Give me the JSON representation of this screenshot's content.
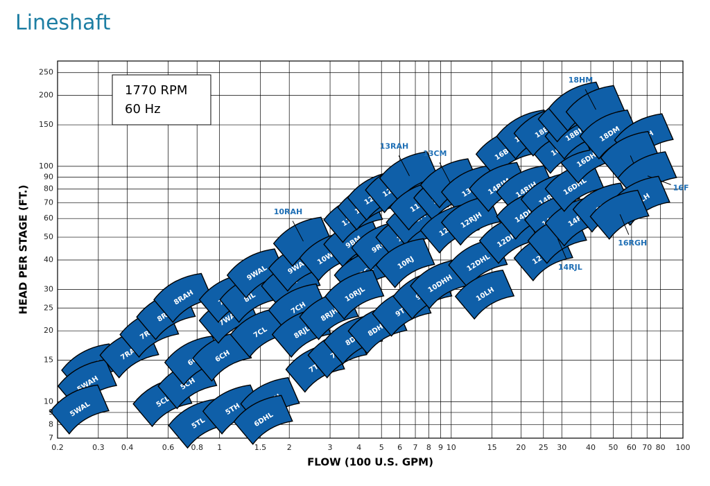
{
  "chart_data": {
    "type": "coverage",
    "title": "Lineshaft",
    "annotation": [
      "1770 RPM",
      "60 Hz"
    ],
    "x_label": "FLOW (100 U.S. GPM)",
    "y_label": "HEAD PER STAGE (FT.)",
    "log_x": true,
    "log_y": true,
    "grid": true,
    "color": "#0f5fa8",
    "callout_color": "#1f6fb5",
    "xlim": [
      0.2,
      100
    ],
    "ylim": [
      7,
      280
    ],
    "xticks": [
      0.2,
      0.3,
      0.4,
      0.6,
      0.8,
      1,
      1.5,
      2,
      3,
      4,
      5,
      6,
      7,
      8,
      9,
      10,
      15,
      20,
      25,
      30,
      40,
      50,
      60,
      70,
      80,
      100
    ],
    "yticks": [
      7,
      8,
      9,
      10,
      15,
      20,
      25,
      30,
      40,
      50,
      60,
      70,
      80,
      90,
      100,
      150,
      200,
      250
    ],
    "regions": [
      {
        "name": "6RAH",
        "x": 0.28,
        "y": 13.9
      },
      {
        "name": "5WAH",
        "x": 0.27,
        "y": 11.9
      },
      {
        "name": "5WAL",
        "x": 0.25,
        "y": 9.3
      },
      {
        "name": "7RAL",
        "x": 0.41,
        "y": 16.1
      },
      {
        "name": "7RAH",
        "x": 0.5,
        "y": 19.7
      },
      {
        "name": "8RAL",
        "x": 0.59,
        "y": 23.4
      },
      {
        "name": "8RAH",
        "x": 0.7,
        "y": 27.7
      },
      {
        "name": "5CL",
        "x": 0.57,
        "y": 10
      },
      {
        "name": "5CH",
        "x": 0.73,
        "y": 11.9
      },
      {
        "name": "6CL",
        "x": 0.78,
        "y": 15
      },
      {
        "name": "5TL",
        "x": 0.81,
        "y": 8.1
      },
      {
        "name": "6CH",
        "x": 1.03,
        "y": 15.6
      },
      {
        "name": "5TH",
        "x": 1.14,
        "y": 9.3
      },
      {
        "name": "6DHH",
        "x": 1.66,
        "y": 10
      },
      {
        "name": "6DHL",
        "x": 1.55,
        "y": 8.4
      },
      {
        "name": "7WAL",
        "x": 1.1,
        "y": 22.6
      },
      {
        "name": "7WAH",
        "x": 1.1,
        "y": 27.7
      },
      {
        "name": "8IL",
        "x": 1.35,
        "y": 27.7
      },
      {
        "name": "9WAL",
        "x": 1.45,
        "y": 35.2
      },
      {
        "name": "7CL",
        "x": 1.5,
        "y": 19.7
      },
      {
        "name": "8IH",
        "x": 2.04,
        "y": 31.7
      },
      {
        "name": "9WAH",
        "x": 2.19,
        "y": 37.6
      },
      {
        "name": "7CH",
        "x": 2.19,
        "y": 25
      },
      {
        "name": "8RJL",
        "x": 2.27,
        "y": 19.7
      },
      {
        "name": "8RJH",
        "x": 2.98,
        "y": 23.4
      },
      {
        "name": "7TL",
        "x": 2.6,
        "y": 14
      },
      {
        "name": "7TH",
        "x": 3.24,
        "y": 16.1
      },
      {
        "name": "8DIL",
        "x": 3.79,
        "y": 18.4
      },
      {
        "name": "10RAH",
        "x": 2.3,
        "y": 48,
        "callout": "above"
      },
      {
        "name": "10WAL",
        "x": 2.98,
        "y": 41.6
      },
      {
        "name": "9BM",
        "x": 3.79,
        "y": 47.6
      },
      {
        "name": "9RCL",
        "x": 4.21,
        "y": 35.2
      },
      {
        "name": "10RJL",
        "x": 3.84,
        "y": 28.6
      },
      {
        "name": "9RCH",
        "x": 5,
        "y": 46
      },
      {
        "name": "11RAH",
        "x": 3.79,
        "y": 60.5
      },
      {
        "name": "11WAH",
        "x": 4.35,
        "y": 68.4
      },
      {
        "name": "12WAM",
        "x": 4.8,
        "y": 75.2
      },
      {
        "name": "12WAH",
        "x": 5.73,
        "y": 81
      },
      {
        "name": "13RAH",
        "x": 6.6,
        "y": 91,
        "callout": "above"
      },
      {
        "name": "11CL",
        "x": 6.36,
        "y": 51
      },
      {
        "name": "11CM",
        "x": 7.05,
        "y": 59
      },
      {
        "name": "11CH",
        "x": 7.3,
        "y": 68.4
      },
      {
        "name": "12CHC",
        "x": 9.27,
        "y": 75
      },
      {
        "name": "13CM",
        "x": 9.9,
        "y": 85,
        "callout": "above"
      },
      {
        "name": "13CH",
        "x": 12.2,
        "y": 79.4
      },
      {
        "name": "12RJM",
        "x": 9.9,
        "y": 54.6
      },
      {
        "name": "12RJH",
        "x": 12.2,
        "y": 59
      },
      {
        "name": "10RJ",
        "x": 6.36,
        "y": 38.9
      },
      {
        "name": "8DHH",
        "x": 4.83,
        "y": 20.4
      },
      {
        "name": "9TL",
        "x": 6.14,
        "y": 24.2
      },
      {
        "name": "9TH",
        "x": 7.55,
        "y": 28.6
      },
      {
        "name": "10DHH",
        "x": 8.96,
        "y": 31.7
      },
      {
        "name": "12DHL",
        "x": 13.1,
        "y": 38.9
      },
      {
        "name": "10LH",
        "x": 14,
        "y": 28.6
      },
      {
        "name": "12DHH",
        "x": 17.8,
        "y": 49.3
      },
      {
        "name": "16BLC",
        "x": 17.2,
        "y": 115
      },
      {
        "name": "16BHC",
        "x": 21.1,
        "y": 137
      },
      {
        "name": "14RJM",
        "x": 16.1,
        "y": 82
      },
      {
        "name": "14RJH",
        "x": 21.1,
        "y": 79.4
      },
      {
        "name": "14DHL",
        "x": 21.1,
        "y": 62.5
      },
      {
        "name": "14RHH",
        "x": 26.9,
        "y": 74
      },
      {
        "name": "14RHM",
        "x": 27.9,
        "y": 60.5
      },
      {
        "name": "12FRH",
        "x": 25.1,
        "y": 41.6
      },
      {
        "name": "14RJL",
        "x": 28.8,
        "y": 49.3,
        "callout": "below"
      },
      {
        "name": "14F",
        "x": 34.2,
        "y": 58.5
      },
      {
        "name": "16DHL",
        "x": 34.2,
        "y": 82
      },
      {
        "name": "15F",
        "x": 45.1,
        "y": 67
      },
      {
        "name": "16DHH",
        "x": 39.3,
        "y": 108
      },
      {
        "name": "16DM",
        "x": 29.8,
        "y": 119
      },
      {
        "name": "18BL",
        "x": 25.1,
        "y": 141
      },
      {
        "name": "18BH",
        "x": 34.2,
        "y": 137
      },
      {
        "name": "18CH",
        "x": 31.9,
        "y": 162
      },
      {
        "name": "20BH",
        "x": 35.4,
        "y": 180
      },
      {
        "name": "18HM",
        "x": 42.1,
        "y": 174,
        "callout": "above"
      },
      {
        "name": "18DM",
        "x": 48.3,
        "y": 137
      },
      {
        "name": "20EH",
        "x": 68.1,
        "y": 132
      },
      {
        "name": "18DH",
        "x": 59.3,
        "y": 111,
        "callout": "below"
      },
      {
        "name": "16F",
        "x": 70.4,
        "y": 91,
        "callout": "right"
      },
      {
        "name": "18LH",
        "x": 65.8,
        "y": 71.6
      },
      {
        "name": "16RGH",
        "x": 53.5,
        "y": 62.5,
        "callout": "below"
      }
    ]
  }
}
